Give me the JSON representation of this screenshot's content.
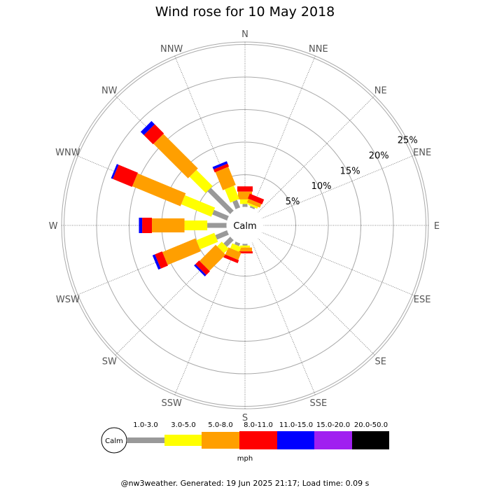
{
  "chart_data": {
    "type": "wind-rose",
    "title": "Wind rose for 10 May 2018",
    "calm_label": "Calm",
    "directions": [
      "N",
      "NNE",
      "NE",
      "ENE",
      "E",
      "ESE",
      "SE",
      "SSE",
      "S",
      "SSW",
      "SW",
      "WSW",
      "W",
      "WNW",
      "NW",
      "NNW"
    ],
    "ring_labels": [
      "5%",
      "10%",
      "15%",
      "20%",
      "25%"
    ],
    "ring_values": [
      5,
      10,
      15,
      20,
      25
    ],
    "speed_unit": "mph",
    "speed_bins": [
      {
        "label": "Calm",
        "color": "#999999"
      },
      {
        "label": "1.0-3.0",
        "color": "#999999"
      },
      {
        "label": "3.0-5.0",
        "color": "#ffff00"
      },
      {
        "label": "5.0-8.0",
        "color": "#ff9f00"
      },
      {
        "label": "8.0-11.0",
        "color": "#ff0000"
      },
      {
        "label": "11.0-15.0",
        "color": "#0000ff"
      },
      {
        "label": "15.0-20.0",
        "color": "#a020f0"
      },
      {
        "label": "20.0-50.0",
        "color": "#000000"
      }
    ],
    "series": [
      {
        "direction": "N",
        "cumulative": [
          0.5,
          1.2,
          2.4,
          3.2,
          3.2,
          3.2,
          3.2
        ]
      },
      {
        "direction": "NNE",
        "cumulative": [
          0.3,
          0.6,
          1.2,
          2.0,
          2.0,
          2.0,
          2.0
        ]
      },
      {
        "direction": "NE",
        "cumulative": [
          0,
          0,
          0,
          0,
          0,
          0,
          0
        ]
      },
      {
        "direction": "ENE",
        "cumulative": [
          0,
          0,
          0,
          0,
          0,
          0,
          0
        ]
      },
      {
        "direction": "E",
        "cumulative": [
          0,
          0,
          0,
          0,
          0,
          0,
          0
        ]
      },
      {
        "direction": "ESE",
        "cumulative": [
          0,
          0,
          0,
          0,
          0,
          0,
          0
        ]
      },
      {
        "direction": "SE",
        "cumulative": [
          0,
          0,
          0,
          0,
          0,
          0,
          0
        ]
      },
      {
        "direction": "SSE",
        "cumulative": [
          0,
          0,
          0,
          0,
          0,
          0,
          0
        ]
      },
      {
        "direction": "S",
        "cumulative": [
          0.3,
          0.6,
          1.2,
          1.5,
          1.5,
          1.5,
          1.5
        ]
      },
      {
        "direction": "SSW",
        "cumulative": [
          0.5,
          1.3,
          2.5,
          3.0,
          3.0,
          3.0,
          3.0
        ]
      },
      {
        "direction": "SW",
        "cumulative": [
          1.5,
          2.5,
          6.0,
          6.8,
          7.1,
          7.1,
          7.1
        ]
      },
      {
        "direction": "WSW",
        "cumulative": [
          2.0,
          5.0,
          10.5,
          11.7,
          12.1,
          12.1,
          12.1
        ]
      },
      {
        "direction": "W",
        "cumulative": [
          3.0,
          6.5,
          11.5,
          13.0,
          13.5,
          13.5,
          13.5
        ]
      },
      {
        "direction": "WNW",
        "cumulative": [
          2.5,
          7.5,
          15.5,
          18.7,
          19.0,
          19.0,
          19.0
        ]
      },
      {
        "direction": "NW",
        "cumulative": [
          5.0,
          8.5,
          16.0,
          18.0,
          18.7,
          18.7,
          18.7
        ]
      },
      {
        "direction": "NNW",
        "cumulative": [
          1.3,
          3.5,
          6.5,
          7.0,
          7.4,
          7.4,
          7.4
        ]
      }
    ]
  },
  "footer": "@nw3weather. Generated: 19 Jun 2025 21:17; Load time: 0.09 s"
}
